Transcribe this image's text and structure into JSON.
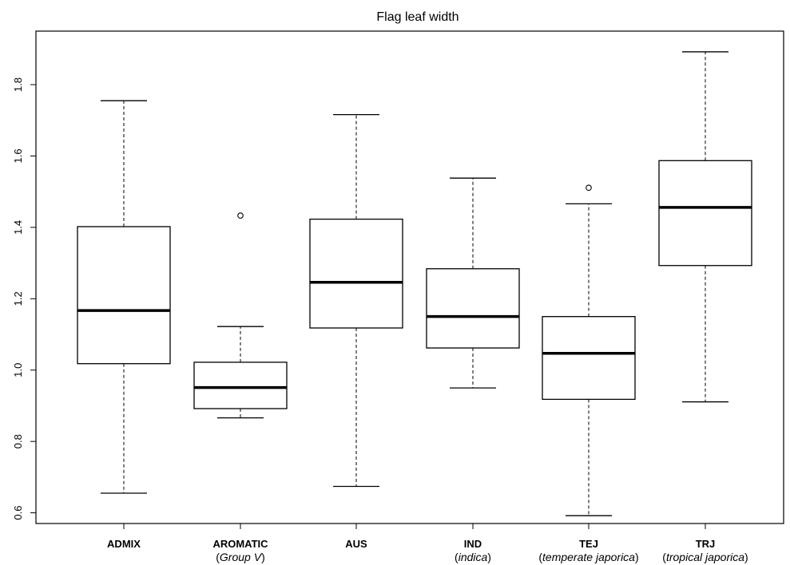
{
  "chart_data": {
    "type": "box",
    "title": "Flag leaf width",
    "xlabel": "",
    "ylabel": "",
    "ylim": [
      0.57,
      1.95
    ],
    "yticks": [
      "0.6",
      "0.8",
      "1.0",
      "1.2",
      "1.4",
      "1.6",
      "1.8"
    ],
    "grid": false,
    "categories": [
      {
        "label": "ADMIX",
        "sub": {
          "pre": "",
          "it": "",
          "post": ""
        }
      },
      {
        "label": "AROMATIC",
        "sub": {
          "pre": "(",
          "it": "Group V",
          "post": ")"
        }
      },
      {
        "label": "AUS",
        "sub": {
          "pre": "",
          "it": "",
          "post": ""
        }
      },
      {
        "label": "IND",
        "sub": {
          "pre": "(",
          "it": "indica",
          "post": ")"
        }
      },
      {
        "label": "TEJ",
        "sub": {
          "pre": "(",
          "it": "temperate japorica",
          "post": ")"
        }
      },
      {
        "label": "TRJ",
        "sub": {
          "pre": "(",
          "it": "tropical japorica",
          "post": ")"
        }
      }
    ],
    "boxes": [
      {
        "whisker_low": 0.655,
        "q1": 1.018,
        "median": 1.167,
        "q3": 1.402,
        "whisker_high": 1.755,
        "outliers": []
      },
      {
        "whisker_low": 0.866,
        "q1": 0.892,
        "median": 0.951,
        "q3": 1.022,
        "whisker_high": 1.122,
        "outliers": [
          1.433
        ]
      },
      {
        "whisker_low": 0.674,
        "q1": 1.118,
        "median": 1.246,
        "q3": 1.423,
        "whisker_high": 1.716,
        "outliers": []
      },
      {
        "whisker_low": 0.95,
        "q1": 1.062,
        "median": 1.15,
        "q3": 1.284,
        "whisker_high": 1.538,
        "outliers": []
      },
      {
        "whisker_low": 0.592,
        "q1": 0.918,
        "median": 1.047,
        "q3": 1.15,
        "whisker_high": 1.466,
        "outliers": [
          1.511
        ]
      },
      {
        "whisker_low": 0.911,
        "q1": 1.293,
        "median": 1.456,
        "q3": 1.587,
        "whisker_high": 1.892,
        "outliers": []
      }
    ]
  }
}
